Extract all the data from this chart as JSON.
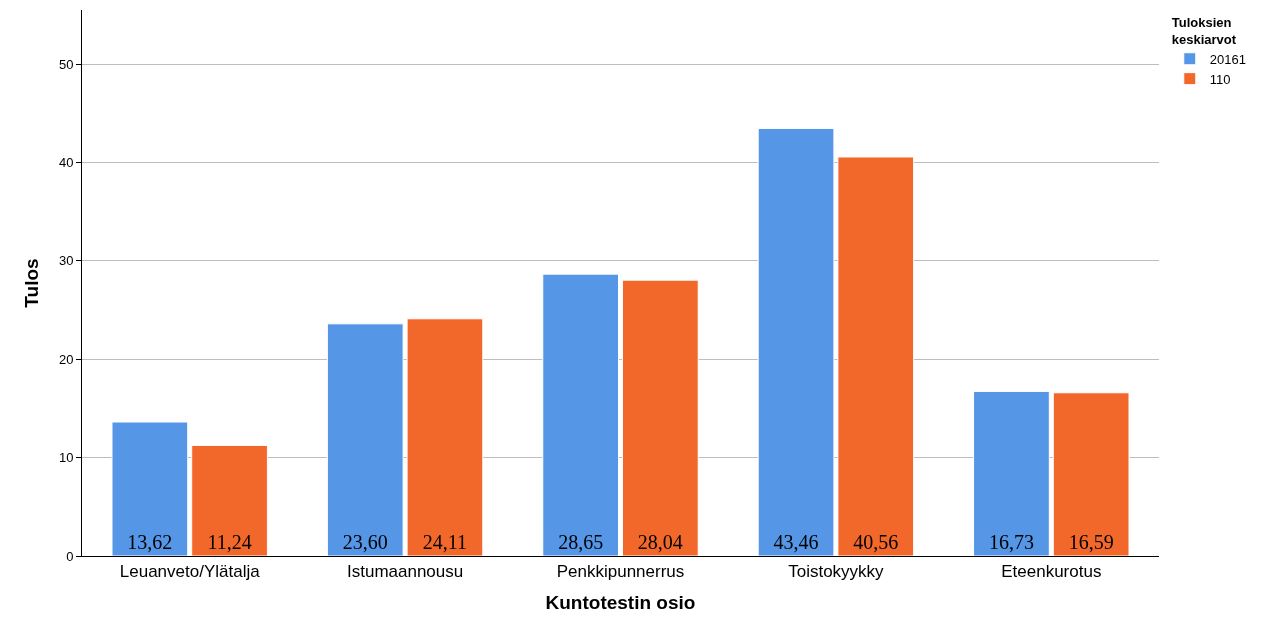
{
  "chart_data": {
    "type": "bar",
    "xlabel": "Kuntotestin osio",
    "ylabel": "Tulos",
    "legend_title": "Tuloksien keskiarvot",
    "categories": [
      "Leuanveto/Ylätalja",
      "Istumaannousu",
      "Penkkipunnerrus",
      "Toistokyykky",
      "Eteenkurotus"
    ],
    "series": [
      {
        "name": "20161",
        "color": "#5596e6",
        "values": [
          13.62,
          23.6,
          28.65,
          43.46,
          16.73
        ],
        "value_labels": [
          "13,62",
          "23,60",
          "28,65",
          "43,46",
          "16,73"
        ]
      },
      {
        "name": "110",
        "color": "#f2682a",
        "values": [
          11.24,
          24.11,
          28.04,
          40.56,
          16.59
        ],
        "value_labels": [
          "11,24",
          "24,11",
          "28,04",
          "40,56",
          "16,59"
        ]
      }
    ],
    "ylim": [
      0,
      55.5
    ],
    "yticks": [
      0,
      10,
      20,
      30,
      40,
      50
    ],
    "grid": "y",
    "legend": "top right"
  }
}
